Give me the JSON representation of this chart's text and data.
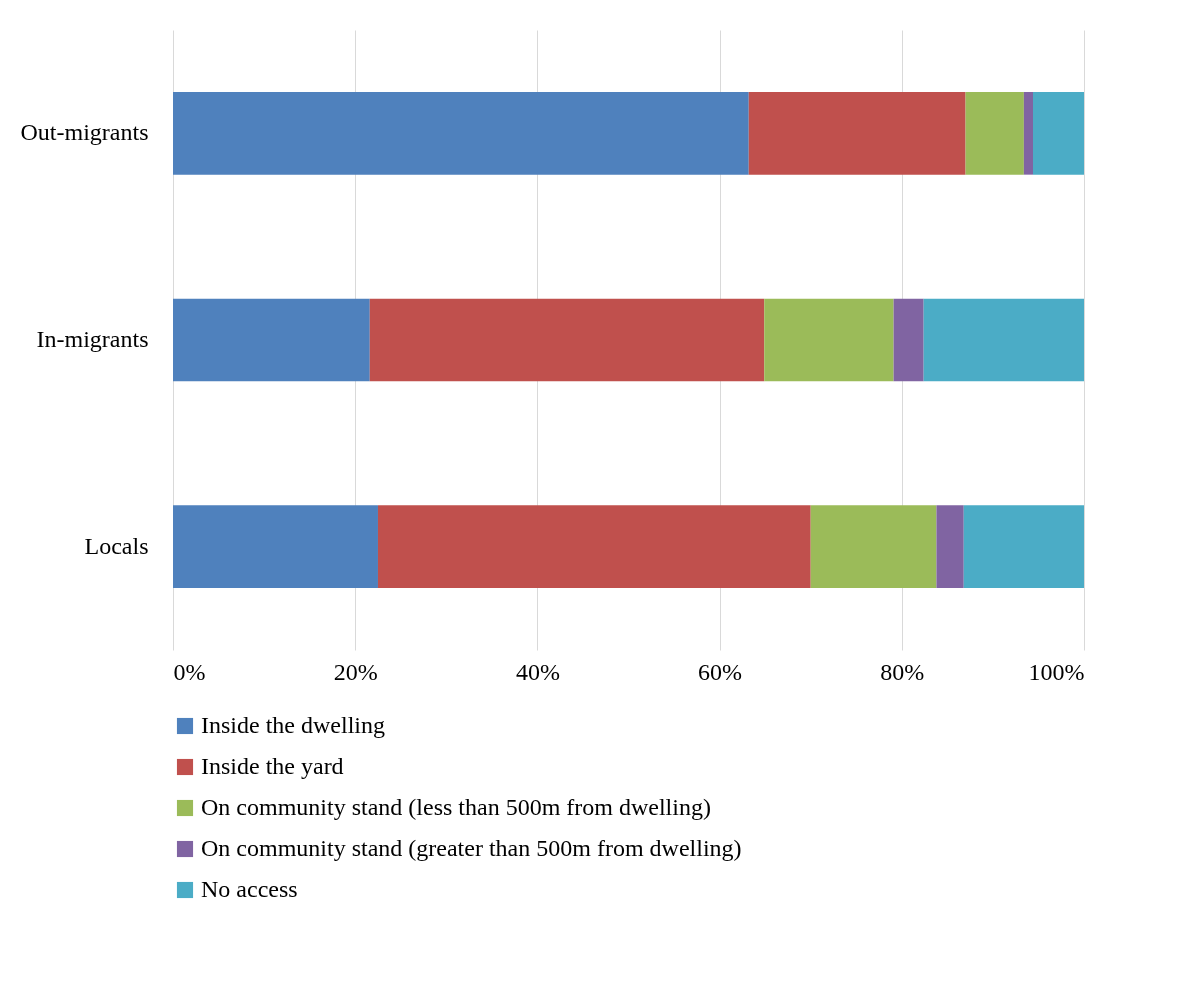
{
  "chart_data": {
    "type": "bar",
    "orientation": "horizontal",
    "stacked": true,
    "categories": [
      "Out-migrants",
      "In-migrants",
      "Locals"
    ],
    "series": [
      {
        "name": "Inside the dwelling",
        "color": "#4f81bd",
        "values": [
          63.2,
          21.6,
          22.5
        ]
      },
      {
        "name": "Inside the yard",
        "color": "#c0504d",
        "values": [
          23.8,
          43.3,
          47.5
        ]
      },
      {
        "name": "On community stand (less than 500m from dwelling)",
        "color": "#9bbb59",
        "values": [
          6.4,
          14.2,
          13.8
        ]
      },
      {
        "name": "On community stand (greater than 500m from dwelling)",
        "color": "#8064a2",
        "values": [
          1.0,
          3.3,
          3.0
        ]
      },
      {
        "name": "No access",
        "color": "#4bacc6",
        "values": [
          5.6,
          17.6,
          13.2
        ]
      }
    ],
    "xlim": [
      0,
      100
    ],
    "xticks": [
      {
        "value": 0,
        "label": "0%"
      },
      {
        "value": 20,
        "label": "20%"
      },
      {
        "value": 40,
        "label": "40%"
      },
      {
        "value": 60,
        "label": "60%"
      },
      {
        "value": 80,
        "label": "80%"
      },
      {
        "value": 100,
        "label": "100%"
      }
    ],
    "grid": "x",
    "legend": "bottom"
  }
}
